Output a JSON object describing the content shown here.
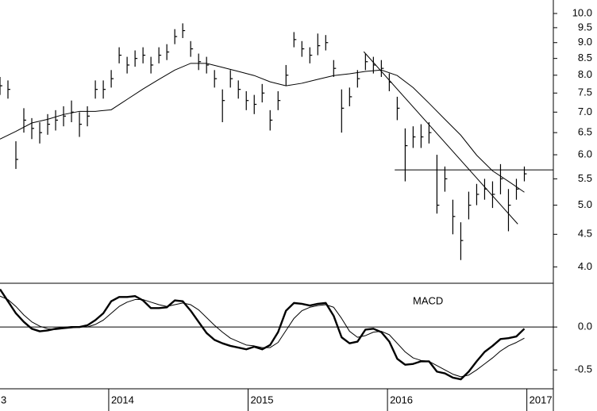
{
  "chart_data": [
    {
      "type": "ohlc",
      "xlim": [
        2013.22,
        2017.19
      ],
      "ylim": [
        3.77,
        10.5
      ],
      "ylog": true,
      "yticks": [
        {
          "value": 4,
          "label": "4.0"
        },
        4.5,
        {
          "value": 5,
          "label": "5.0"
        },
        5.5,
        {
          "value": 6,
          "label": "6.0"
        },
        6.5,
        {
          "value": 7,
          "label": "7.0"
        },
        7.5,
        {
          "value": 8,
          "label": "8.0"
        },
        8.5,
        {
          "value": 9,
          "label": "9.0"
        },
        9.5,
        {
          "value": 10,
          "label": "10.0"
        }
      ],
      "color": "#000000",
      "x": [
        2013.22,
        2013.277,
        2013.334,
        2013.391,
        2013.448,
        2013.505,
        2013.562,
        2013.619,
        2013.676,
        2013.733,
        2013.79,
        2013.847,
        2013.904,
        2013.961,
        2014.018,
        2014.075,
        2014.132,
        2014.189,
        2014.246,
        2014.303,
        2014.36,
        2014.417,
        2014.474,
        2014.531,
        2014.588,
        2014.645,
        2014.702,
        2014.759,
        2014.816,
        2014.873,
        2014.93,
        2014.987,
        2015.044,
        2015.101,
        2015.158,
        2015.215,
        2015.272,
        2015.329,
        2015.386,
        2015.443,
        2015.5,
        2015.557,
        2015.614,
        2015.671,
        2015.728,
        2015.785,
        2015.842,
        2015.899,
        2015.956,
        2016.013,
        2016.07,
        2016.127,
        2016.184,
        2016.241,
        2016.298,
        2016.355,
        2016.412,
        2016.469,
        2016.526,
        2016.583,
        2016.64,
        2016.697,
        2016.754,
        2016.811,
        2016.868,
        2016.925,
        2016.982
      ],
      "high": [
        7.95,
        7.85,
        6.3,
        7.1,
        6.85,
        6.75,
        6.95,
        7.05,
        7.15,
        7.3,
        7.0,
        7.15,
        7.85,
        7.85,
        8.15,
        8.85,
        8.55,
        8.75,
        8.85,
        8.55,
        8.85,
        8.95,
        9.45,
        9.65,
        9.05,
        8.65,
        8.55,
        8.15,
        7.6,
        8.15,
        7.85,
        7.55,
        7.45,
        7.75,
        7.05,
        7.55,
        8.3,
        9.35,
        9.05,
        8.85,
        9.3,
        9.25,
        8.45,
        7.6,
        7.65,
        8.15,
        8.65,
        8.55,
        8.45,
        8.05,
        7.4,
        6.6,
        6.65,
        6.7,
        6.75,
        6.0,
        5.75,
        5.1,
        4.7,
        5.25,
        5.4,
        5.5,
        5.45,
        5.8,
        5.3,
        5.5,
        5.75
      ],
      "low": [
        7.45,
        7.35,
        5.7,
        6.5,
        6.35,
        6.25,
        6.45,
        6.55,
        6.65,
        6.75,
        6.4,
        6.65,
        7.35,
        7.35,
        7.65,
        8.35,
        8.05,
        8.25,
        8.35,
        8.05,
        8.35,
        8.45,
        8.95,
        9.15,
        8.55,
        8.15,
        8.05,
        7.65,
        6.75,
        7.65,
        7.35,
        7.05,
        6.95,
        7.25,
        6.55,
        7.05,
        7.7,
        8.85,
        8.55,
        8.35,
        8.6,
        8.75,
        7.95,
        6.5,
        7.15,
        7.65,
        8.15,
        8.05,
        7.95,
        7.55,
        6.8,
        5.45,
        6.15,
        6.15,
        6.25,
        4.85,
        5.25,
        4.5,
        4.1,
        4.75,
        5.0,
        5.1,
        4.95,
        5.2,
        4.55,
        5.1,
        5.45
      ],
      "close": [
        7.7,
        7.6,
        5.9,
        6.8,
        6.6,
        6.5,
        6.7,
        6.8,
        6.9,
        7.0,
        6.7,
        6.9,
        7.6,
        7.6,
        7.9,
        8.6,
        8.3,
        8.5,
        8.6,
        8.3,
        8.6,
        8.7,
        9.2,
        9.4,
        8.8,
        8.4,
        8.3,
        7.9,
        7.3,
        7.9,
        7.6,
        7.3,
        7.2,
        7.5,
        6.8,
        7.3,
        8.0,
        9.1,
        8.8,
        8.6,
        8.9,
        9.0,
        8.2,
        7.1,
        7.4,
        7.9,
        8.4,
        8.3,
        8.2,
        7.8,
        7.1,
        6.2,
        6.4,
        6.4,
        6.5,
        5.0,
        5.5,
        4.8,
        4.4,
        5.0,
        5.2,
        5.3,
        5.2,
        5.5,
        5.0,
        5.3,
        5.6
      ],
      "moving_average": {
        "color": "#000000",
        "x": [
          2013.22,
          2013.334,
          2013.448,
          2013.562,
          2013.676,
          2013.79,
          2013.904,
          2014.018,
          2014.132,
          2014.246,
          2014.36,
          2014.474,
          2014.588,
          2014.702,
          2014.816,
          2014.93,
          2015.044,
          2015.158,
          2015.272,
          2015.386,
          2015.5,
          2015.614,
          2015.728,
          2015.842,
          2015.956,
          2016.07,
          2016.184,
          2016.298,
          2016.412,
          2016.526,
          2016.64,
          2016.754,
          2016.868,
          2016.982
        ],
        "values": [
          6.35,
          6.53,
          6.73,
          6.82,
          6.94,
          7.02,
          7.02,
          7.06,
          7.33,
          7.61,
          7.88,
          8.15,
          8.35,
          8.35,
          8.23,
          8.11,
          7.99,
          7.81,
          7.7,
          7.77,
          7.88,
          7.99,
          8.04,
          8.11,
          8.15,
          7.99,
          7.65,
          7.23,
          6.82,
          6.44,
          5.99,
          5.66,
          5.45,
          5.24
        ]
      },
      "trendlines": [
        {
          "x": [
            2015.83,
            2016.935
          ],
          "y": [
            8.71,
            4.67
          ]
        },
        {
          "x": [
            2016.052,
            2017.19
          ],
          "y": [
            5.68,
            5.68
          ]
        }
      ]
    },
    {
      "type": "line",
      "title": "MACD",
      "xlim": [
        2013.22,
        2017.19
      ],
      "xticks": [
        {
          "value": 2013,
          "label": "3"
        },
        2014,
        2015,
        2016,
        2017
      ],
      "ylim": [
        -0.72,
        0.51
      ],
      "yticks": [
        -0.5,
        {
          "value": 0,
          "label": "0.0"
        }
      ],
      "zero_line": true,
      "x": [
        2013.22,
        2013.277,
        2013.334,
        2013.391,
        2013.448,
        2013.505,
        2013.562,
        2013.619,
        2013.676,
        2013.733,
        2013.79,
        2013.847,
        2013.904,
        2013.961,
        2014.018,
        2014.075,
        2014.132,
        2014.189,
        2014.246,
        2014.303,
        2014.36,
        2014.417,
        2014.474,
        2014.531,
        2014.588,
        2014.645,
        2014.702,
        2014.759,
        2014.816,
        2014.873,
        2014.93,
        2014.987,
        2015.044,
        2015.101,
        2015.158,
        2015.215,
        2015.272,
        2015.329,
        2015.386,
        2015.443,
        2015.5,
        2015.557,
        2015.614,
        2015.671,
        2015.728,
        2015.785,
        2015.842,
        2015.899,
        2015.956,
        2016.013,
        2016.07,
        2016.127,
        2016.184,
        2016.241,
        2016.298,
        2016.355,
        2016.412,
        2016.469,
        2016.526,
        2016.583,
        2016.64,
        2016.697,
        2016.754,
        2016.811,
        2016.868,
        2016.925,
        2016.982
      ],
      "series": [
        {
          "color": "#000000",
          "width": 2.4,
          "values": [
            0.44,
            0.3,
            0.16,
            0.06,
            -0.02,
            -0.05,
            -0.04,
            -0.02,
            -0.01,
            0,
            0,
            0.02,
            0.08,
            0.16,
            0.3,
            0.35,
            0.35,
            0.36,
            0.31,
            0.22,
            0.22,
            0.23,
            0.31,
            0.3,
            0.19,
            0.06,
            -0.07,
            -0.15,
            -0.19,
            -0.22,
            -0.24,
            -0.26,
            -0.23,
            -0.26,
            -0.21,
            -0.06,
            0.19,
            0.28,
            0.27,
            0.25,
            0.27,
            0.28,
            0.13,
            -0.12,
            -0.19,
            -0.17,
            -0.03,
            -0.02,
            -0.06,
            -0.17,
            -0.37,
            -0.44,
            -0.43,
            -0.4,
            -0.4,
            -0.52,
            -0.54,
            -0.59,
            -0.61,
            -0.52,
            -0.4,
            -0.29,
            -0.22,
            -0.14,
            -0.13,
            -0.11,
            -0.02
          ]
        },
        {
          "color": "#000000",
          "width": 1,
          "values": [
            0.36,
            0.32,
            0.24,
            0.14,
            0.06,
            0.01,
            -0.02,
            -0.03,
            -0.02,
            -0.01,
            0,
            0,
            0.03,
            0.08,
            0.16,
            0.24,
            0.29,
            0.32,
            0.32,
            0.29,
            0.26,
            0.24,
            0.26,
            0.28,
            0.26,
            0.2,
            0.11,
            0.02,
            -0.06,
            -0.13,
            -0.17,
            -0.21,
            -0.22,
            -0.24,
            -0.24,
            -0.18,
            -0.04,
            0.1,
            0.19,
            0.23,
            0.25,
            0.26,
            0.23,
            0.1,
            -0.05,
            -0.12,
            -0.1,
            -0.06,
            -0.05,
            -0.09,
            -0.19,
            -0.29,
            -0.36,
            -0.39,
            -0.4,
            -0.45,
            -0.5,
            -0.55,
            -0.58,
            -0.56,
            -0.5,
            -0.43,
            -0.36,
            -0.28,
            -0.22,
            -0.18,
            -0.13
          ]
        }
      ]
    }
  ]
}
